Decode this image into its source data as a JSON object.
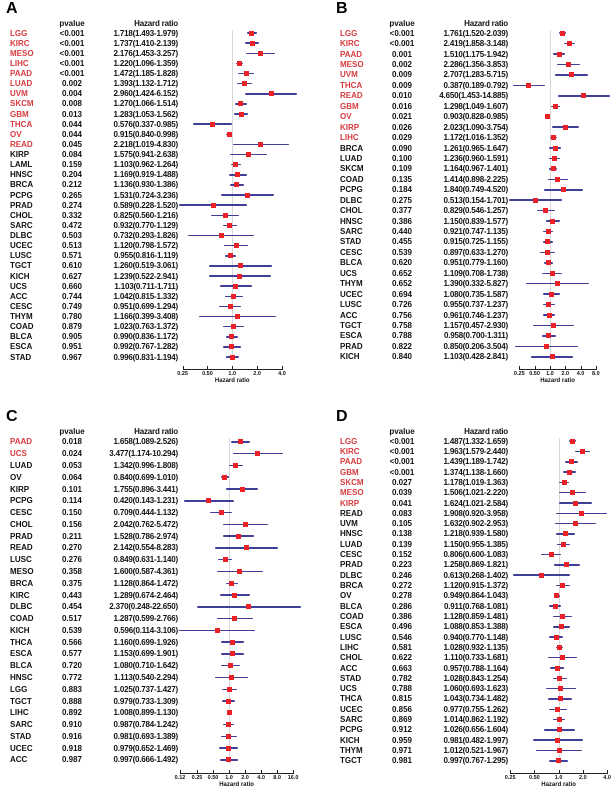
{
  "colors": {
    "significant_label": "#d63b3f",
    "normal_label": "#111111",
    "square": "#ec2127",
    "whisker": "#3f3f99",
    "reference_line": "#d9d9d9",
    "axis": "#222222"
  },
  "chart_data": [
    {
      "type": "forest",
      "panel": "A",
      "headers": {
        "pvalue": "pvalue",
        "hazard_ratio": "Hazard ratio"
      },
      "xlabel": "Hazard ratio",
      "xscale": "log",
      "xlim": [
        0.22,
        7.0
      ],
      "ref_value": 1.0,
      "ticks": [
        "0.25",
        "0.50",
        "1.0",
        "2.0",
        "4.0"
      ],
      "rows": [
        {
          "name": "LGG",
          "pvalue": "<0.001",
          "hr": "1.718(1.493-1.979)"
        },
        {
          "name": "KIRC",
          "pvalue": "<0.001",
          "hr": "1.737(1.410-2.139)"
        },
        {
          "name": "MESO",
          "pvalue": "<0.001",
          "hr": "2.176(1.453-3.257)"
        },
        {
          "name": "LIHC",
          "pvalue": "<0.001",
          "hr": "1.220(1.096-1.359)"
        },
        {
          "name": "PAAD",
          "pvalue": "<0.001",
          "hr": "1.472(1.185-1.828)"
        },
        {
          "name": "LUAD",
          "pvalue": "0.002",
          "hr": "1.393(1.132-1.712)"
        },
        {
          "name": "UVM",
          "pvalue": "0.004",
          "hr": "2.960(1.424-6.152)"
        },
        {
          "name": "SKCM",
          "pvalue": "0.008",
          "hr": "1.270(1.066-1.514)"
        },
        {
          "name": "GBM",
          "pvalue": "0.013",
          "hr": "1.283(1.053-1.562)"
        },
        {
          "name": "THCA",
          "pvalue": "0.044",
          "hr": "0.576(0.337-0.985)"
        },
        {
          "name": "OV",
          "pvalue": "0.044",
          "hr": "0.915(0.840-0.998)"
        },
        {
          "name": "READ",
          "pvalue": "0.045",
          "hr": "2.218(1.019-4.830)"
        },
        {
          "name": "KIRP",
          "pvalue": "0.084",
          "hr": "1.575(0.941-2.638)"
        },
        {
          "name": "LAML",
          "pvalue": "0.159",
          "hr": "1.103(0.962-1.264)"
        },
        {
          "name": "HNSC",
          "pvalue": "0.204",
          "hr": "1.169(0.919-1.488)"
        },
        {
          "name": "BRCA",
          "pvalue": "0.212",
          "hr": "1.136(0.930-1.386)"
        },
        {
          "name": "PCPG",
          "pvalue": "0.265",
          "hr": "1.531(0.724-3.236)"
        },
        {
          "name": "PRAD",
          "pvalue": "0.274",
          "hr": "0.589(0.228-1.520)"
        },
        {
          "name": "CHOL",
          "pvalue": "0.332",
          "hr": "0.825(0.560-1.216)"
        },
        {
          "name": "SARC",
          "pvalue": "0.472",
          "hr": "0.932(0.770-1.129)"
        },
        {
          "name": "DLBC",
          "pvalue": "0.503",
          "hr": "0.732(0.293-1.826)"
        },
        {
          "name": "UCEC",
          "pvalue": "0.513",
          "hr": "1.120(0.798-1.572)"
        },
        {
          "name": "LUSC",
          "pvalue": "0.571",
          "hr": "0.955(0.816-1.119)"
        },
        {
          "name": "TGCT",
          "pvalue": "0.610",
          "hr": "1.260(0.519-3.061)"
        },
        {
          "name": "KICH",
          "pvalue": "0.627",
          "hr": "1.239(0.522-2.941)"
        },
        {
          "name": "UCS",
          "pvalue": "0.660",
          "hr": "1.103(0.711-1.711)"
        },
        {
          "name": "ACC",
          "pvalue": "0.744",
          "hr": "1.042(0.815-1.332)"
        },
        {
          "name": "CESC",
          "pvalue": "0.749",
          "hr": "0.951(0.699-1.294)"
        },
        {
          "name": "THYM",
          "pvalue": "0.780",
          "hr": "1.166(0.399-3.408)"
        },
        {
          "name": "COAD",
          "pvalue": "0.879",
          "hr": "1.023(0.763-1.372)"
        },
        {
          "name": "BLCA",
          "pvalue": "0.905",
          "hr": "0.990(0.836-1.172)"
        },
        {
          "name": "ESCA",
          "pvalue": "0.951",
          "hr": "0.992(0.767-1.282)"
        },
        {
          "name": "STAD",
          "pvalue": "0.967",
          "hr": "0.996(0.831-1.194)"
        }
      ]
    },
    {
      "type": "forest",
      "panel": "B",
      "headers": {
        "pvalue": "pvalue",
        "hazard_ratio": "Hazard ratio"
      },
      "xlabel": "Hazard ratio",
      "xscale": "log",
      "xlim": [
        0.15,
        15.2
      ],
      "ref_value": 1.0,
      "ticks": [
        "0.25",
        "0.50",
        "1.0",
        "2.0",
        "4.0",
        "8.0"
      ],
      "rows": [
        {
          "name": "LGG",
          "pvalue": "<0.001",
          "hr": "1.761(1.520-2.039)"
        },
        {
          "name": "KIRC",
          "pvalue": "<0.001",
          "hr": "2.419(1.858-3.148)"
        },
        {
          "name": "PAAD",
          "pvalue": "0.001",
          "hr": "1.510(1.175-1.942)"
        },
        {
          "name": "MESO",
          "pvalue": "0.002",
          "hr": "2.286(1.356-3.853)"
        },
        {
          "name": "UVM",
          "pvalue": "0.009",
          "hr": "2.707(1.283-5.715)"
        },
        {
          "name": "THCA",
          "pvalue": "0.009",
          "hr": "0.387(0.189-0.792)"
        },
        {
          "name": "READ",
          "pvalue": "0.010",
          "hr": "4.650(1.453-14.885)"
        },
        {
          "name": "GBM",
          "pvalue": "0.016",
          "hr": "1.298(1.049-1.607)"
        },
        {
          "name": "OV",
          "pvalue": "0.021",
          "hr": "0.903(0.828-0.985)"
        },
        {
          "name": "KIRP",
          "pvalue": "0.026",
          "hr": "2.023(1.090-3.754)"
        },
        {
          "name": "LIHC",
          "pvalue": "0.029",
          "hr": "1.172(1.016-1.352)"
        },
        {
          "name": "BRCA",
          "pvalue": "0.090",
          "hr": "1.261(0.965-1.647)"
        },
        {
          "name": "LUAD",
          "pvalue": "0.100",
          "hr": "1.236(0.960-1.591)"
        },
        {
          "name": "SKCM",
          "pvalue": "0.109",
          "hr": "1.164(0.967-1.401)"
        },
        {
          "name": "COAD",
          "pvalue": "0.135",
          "hr": "1.414(0.898-2.225)"
        },
        {
          "name": "PCPG",
          "pvalue": "0.184",
          "hr": "1.840(0.749-4.520)"
        },
        {
          "name": "DLBC",
          "pvalue": "0.275",
          "hr": "0.513(0.154-1.701)"
        },
        {
          "name": "CHOL",
          "pvalue": "0.377",
          "hr": "0.829(0.546-1.257)"
        },
        {
          "name": "HNSC",
          "pvalue": "0.386",
          "hr": "1.150(0.839-1.577)"
        },
        {
          "name": "SARC",
          "pvalue": "0.440",
          "hr": "0.921(0.747-1.135)"
        },
        {
          "name": "STAD",
          "pvalue": "0.455",
          "hr": "0.915(0.725-1.155)"
        },
        {
          "name": "CESC",
          "pvalue": "0.539",
          "hr": "0.897(0.633-1.270)"
        },
        {
          "name": "BLCA",
          "pvalue": "0.620",
          "hr": "0.951(0.779-1.160)"
        },
        {
          "name": "UCS",
          "pvalue": "0.652",
          "hr": "1.109(0.708-1.738)"
        },
        {
          "name": "THYM",
          "pvalue": "0.652",
          "hr": "1.390(0.332-5.827)"
        },
        {
          "name": "UCEC",
          "pvalue": "0.694",
          "hr": "1.080(0.735-1.587)"
        },
        {
          "name": "LUSC",
          "pvalue": "0.726",
          "hr": "0.955(0.737-1.237)"
        },
        {
          "name": "ACC",
          "pvalue": "0.756",
          "hr": "0.961(0.746-1.237)"
        },
        {
          "name": "TGCT",
          "pvalue": "0.758",
          "hr": "1.157(0.457-2.930)"
        },
        {
          "name": "ESCA",
          "pvalue": "0.788",
          "hr": "0.958(0.700-1.311)"
        },
        {
          "name": "PRAD",
          "pvalue": "0.822",
          "hr": "0.850(0.206-3.504)"
        },
        {
          "name": "KICH",
          "pvalue": "0.840",
          "hr": "1.103(0.428-2.841)"
        }
      ]
    },
    {
      "type": "forest",
      "panel": "C",
      "headers": {
        "pvalue": "pvalue",
        "hazard_ratio": "Hazard ratio"
      },
      "xlabel": "Hazard ratio",
      "xscale": "log",
      "xlim": [
        0.11,
        23.5
      ],
      "ref_value": 1.0,
      "ticks": [
        "0.12",
        "0.25",
        "0.50",
        "1.0",
        "2.0",
        "4.0",
        "8.0",
        "16.0"
      ],
      "rows": [
        {
          "name": "PAAD",
          "pvalue": "0.018",
          "hr": "1.658(1.089-2.526)"
        },
        {
          "name": "UCS",
          "pvalue": "0.024",
          "hr": "3.477(1.174-10.294)"
        },
        {
          "name": "LUAD",
          "pvalue": "0.053",
          "hr": "1.342(0.996-1.808)"
        },
        {
          "name": "OV",
          "pvalue": "0.064",
          "hr": "0.840(0.699-1.010)"
        },
        {
          "name": "KIRP",
          "pvalue": "0.101",
          "hr": "1.755(0.896-3.441)"
        },
        {
          "name": "PCPG",
          "pvalue": "0.114",
          "hr": "0.420(0.143-1.231)"
        },
        {
          "name": "CESC",
          "pvalue": "0.150",
          "hr": "0.709(0.444-1.132)"
        },
        {
          "name": "CHOL",
          "pvalue": "0.156",
          "hr": "2.042(0.762-5.472)"
        },
        {
          "name": "PRAD",
          "pvalue": "0.211",
          "hr": "1.528(0.786-2.974)"
        },
        {
          "name": "READ",
          "pvalue": "0.270",
          "hr": "2.142(0.554-8.283)"
        },
        {
          "name": "LUSC",
          "pvalue": "0.276",
          "hr": "0.849(0.631-1.140)"
        },
        {
          "name": "MESO",
          "pvalue": "0.358",
          "hr": "1.600(0.587-4.361)"
        },
        {
          "name": "BRCA",
          "pvalue": "0.375",
          "hr": "1.128(0.864-1.472)"
        },
        {
          "name": "KIRC",
          "pvalue": "0.443",
          "hr": "1.289(0.674-2.464)"
        },
        {
          "name": "DLBC",
          "pvalue": "0.454",
          "hr": "2.370(0.248-22.650)"
        },
        {
          "name": "COAD",
          "pvalue": "0.517",
          "hr": "1.287(0.599-2.766)"
        },
        {
          "name": "KICH",
          "pvalue": "0.539",
          "hr": "0.596(0.114-3.106)"
        },
        {
          "name": "THCA",
          "pvalue": "0.566",
          "hr": "1.160(0.699-1.926)"
        },
        {
          "name": "ESCA",
          "pvalue": "0.577",
          "hr": "1.153(0.699-1.901)"
        },
        {
          "name": "BLCA",
          "pvalue": "0.720",
          "hr": "1.080(0.710-1.642)"
        },
        {
          "name": "HNSC",
          "pvalue": "0.772",
          "hr": "1.113(0.540-2.294)"
        },
        {
          "name": "LGG",
          "pvalue": "0.883",
          "hr": "1.025(0.737-1.427)"
        },
        {
          "name": "TGCT",
          "pvalue": "0.888",
          "hr": "0.979(0.733-1.309)"
        },
        {
          "name": "LIHC",
          "pvalue": "0.892",
          "hr": "1.008(0.899-1.130)"
        },
        {
          "name": "SARC",
          "pvalue": "0.910",
          "hr": "0.987(0.784-1.242)"
        },
        {
          "name": "STAD",
          "pvalue": "0.916",
          "hr": "0.981(0.693-1.389)"
        },
        {
          "name": "UCEC",
          "pvalue": "0.918",
          "hr": "0.979(0.652-1.469)"
        },
        {
          "name": "ACC",
          "pvalue": "0.987",
          "hr": "0.997(0.666-1.492)"
        }
      ]
    },
    {
      "type": "forest",
      "panel": "D",
      "headers": {
        "pvalue": "pvalue",
        "hazard_ratio": "Hazard ratio"
      },
      "xlabel": "Hazard ratio",
      "xscale": "log",
      "xlim": [
        0.235,
        4.35
      ],
      "ref_value": 1.0,
      "ticks": [
        "0.25",
        "0.50",
        "1.0",
        "2.0",
        "4.0"
      ],
      "rows": [
        {
          "name": "LGG",
          "pvalue": "<0.001",
          "hr": "1.487(1.332-1.659)"
        },
        {
          "name": "KIRC",
          "pvalue": "<0.001",
          "hr": "1.963(1.579-2.440)"
        },
        {
          "name": "PAAD",
          "pvalue": "<0.001",
          "hr": "1.439(1.189-1.742)"
        },
        {
          "name": "GBM",
          "pvalue": "<0.001",
          "hr": "1.374(1.138-1.660)"
        },
        {
          "name": "SKCM",
          "pvalue": "0.027",
          "hr": "1.178(1.019-1.363)"
        },
        {
          "name": "MESO",
          "pvalue": "0.039",
          "hr": "1.506(1.021-2.220)"
        },
        {
          "name": "KIRP",
          "pvalue": "0.041",
          "hr": "1.624(1.021-2.584)"
        },
        {
          "name": "READ",
          "pvalue": "0.083",
          "hr": "1.908(0.920-3.958)"
        },
        {
          "name": "UVM",
          "pvalue": "0.105",
          "hr": "1.632(0.902-2.953)"
        },
        {
          "name": "HNSC",
          "pvalue": "0.138",
          "hr": "1.218(0.939-1.580)"
        },
        {
          "name": "LUAD",
          "pvalue": "0.139",
          "hr": "1.150(0.955-1.385)"
        },
        {
          "name": "CESC",
          "pvalue": "0.152",
          "hr": "0.806(0.600-1.083)"
        },
        {
          "name": "PRAD",
          "pvalue": "0.223",
          "hr": "1.258(0.869-1.821)"
        },
        {
          "name": "DLBC",
          "pvalue": "0.246",
          "hr": "0.613(0.268-1.402)"
        },
        {
          "name": "BRCA",
          "pvalue": "0.272",
          "hr": "1.120(0.915-1.372)"
        },
        {
          "name": "OV",
          "pvalue": "0.278",
          "hr": "0.949(0.864-1.043)"
        },
        {
          "name": "BLCA",
          "pvalue": "0.286",
          "hr": "0.911(0.768-1.081)"
        },
        {
          "name": "COAD",
          "pvalue": "0.386",
          "hr": "1.128(0.859-1.481)"
        },
        {
          "name": "ESCA",
          "pvalue": "0.496",
          "hr": "1.088(0.853-1.388)"
        },
        {
          "name": "LUSC",
          "pvalue": "0.546",
          "hr": "0.940(0.770-1.148)"
        },
        {
          "name": "LIHC",
          "pvalue": "0.581",
          "hr": "1.028(0.932-1.135)"
        },
        {
          "name": "CHOL",
          "pvalue": "0.622",
          "hr": "1.110(0.733-1.681)"
        },
        {
          "name": "ACC",
          "pvalue": "0.663",
          "hr": "0.957(0.788-1.164)"
        },
        {
          "name": "STAD",
          "pvalue": "0.782",
          "hr": "1.028(0.843-1.254)"
        },
        {
          "name": "UCS",
          "pvalue": "0.788",
          "hr": "1.060(0.693-1.623)"
        },
        {
          "name": "THCA",
          "pvalue": "0.815",
          "hr": "1.043(0.734-1.482)"
        },
        {
          "name": "UCEC",
          "pvalue": "0.856",
          "hr": "0.977(0.755-1.262)"
        },
        {
          "name": "SARC",
          "pvalue": "0.869",
          "hr": "1.014(0.862-1.192)"
        },
        {
          "name": "PCPG",
          "pvalue": "0.912",
          "hr": "1.026(0.656-1.604)"
        },
        {
          "name": "KICH",
          "pvalue": "0.959",
          "hr": "0.981(0.482-1.997)"
        },
        {
          "name": "THYM",
          "pvalue": "0.971",
          "hr": "1.012(0.521-1.967)"
        },
        {
          "name": "TGCT",
          "pvalue": "0.981",
          "hr": "0.997(0.767-1.295)"
        }
      ]
    }
  ]
}
